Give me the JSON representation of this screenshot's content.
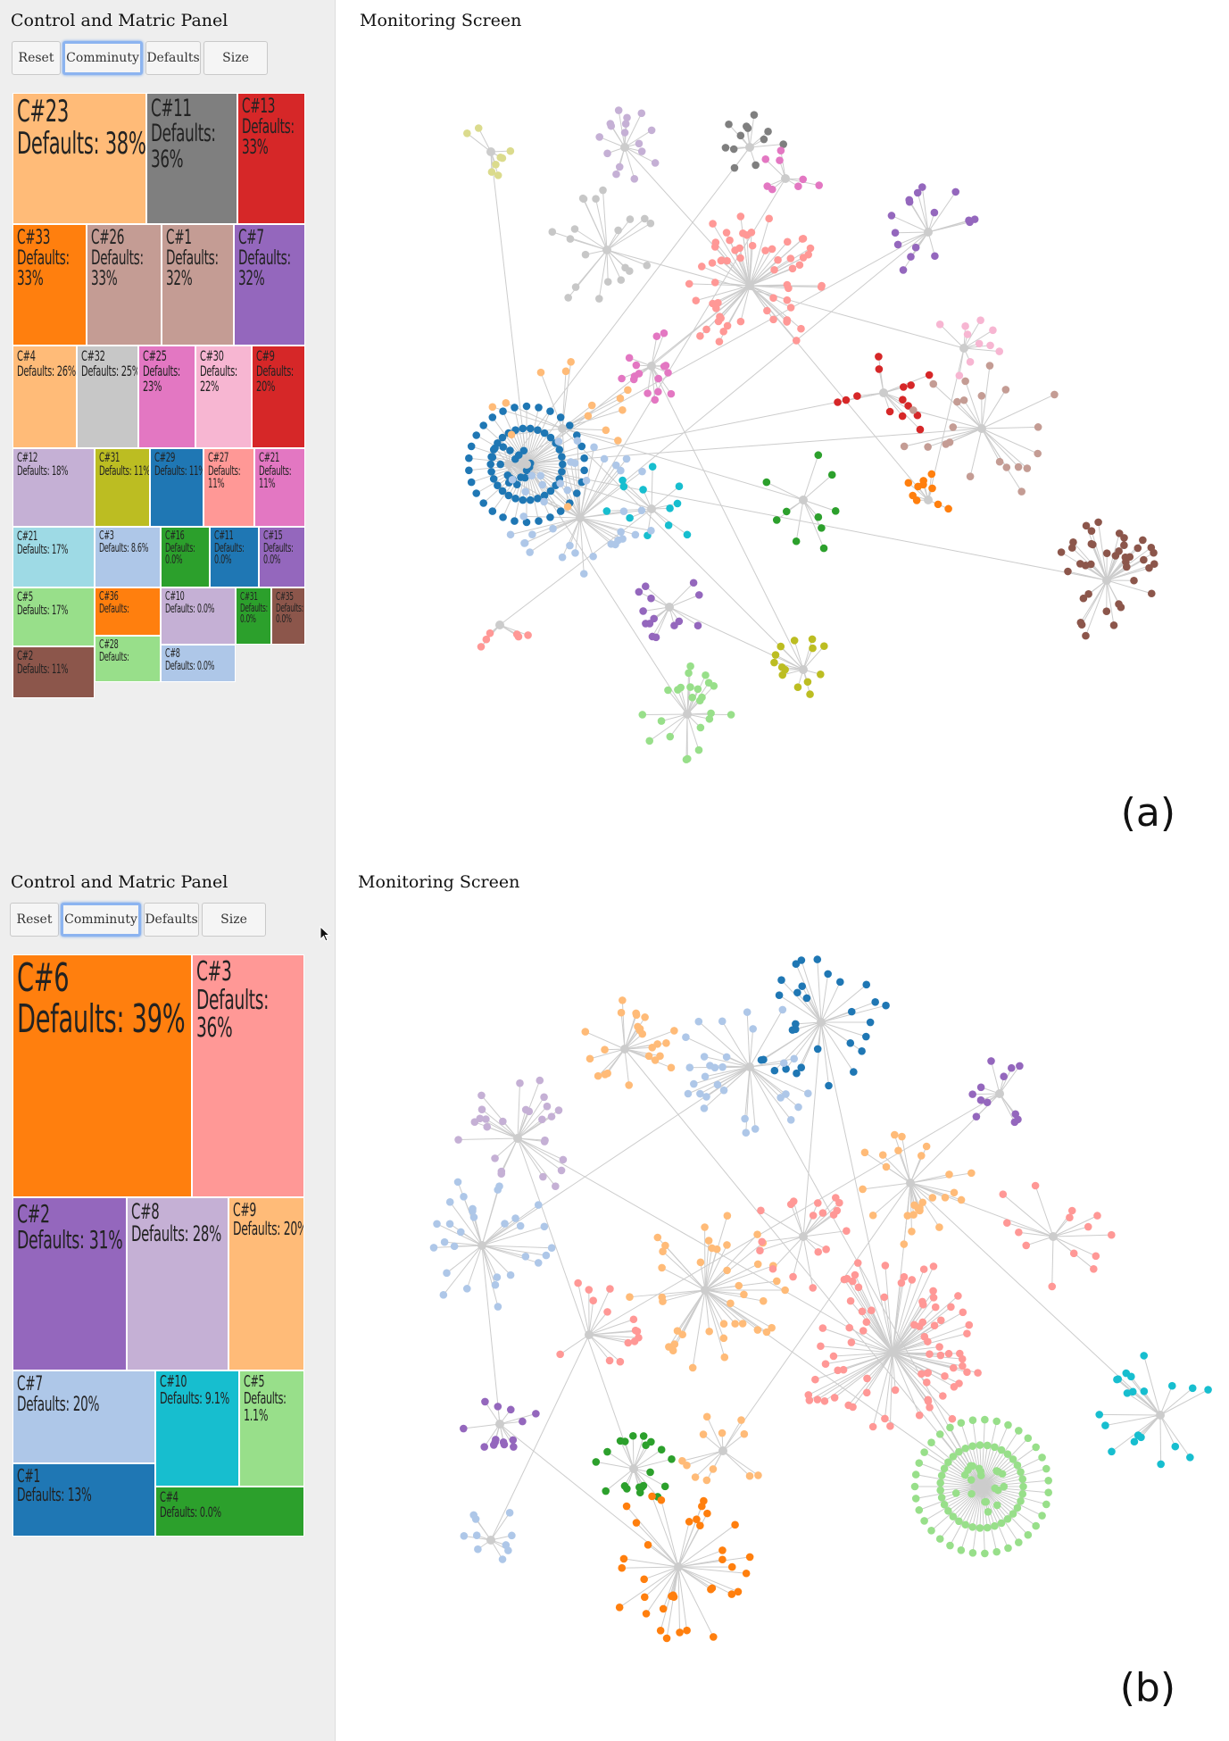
{
  "sections": [
    {
      "id": "a",
      "panel_title": "Control and Matric Panel",
      "buttons": [
        "Reset",
        "Comminuty",
        "Defaults",
        "Size"
      ],
      "active_button": "Comminuty",
      "screen_title": "Monitoring Screen",
      "label": "(a)",
      "treemap": [
        {
          "id": "C#23",
          "defaults": "38%",
          "color": "#ffbb78"
        },
        {
          "id": "C#11",
          "defaults": "36%",
          "color": "#7f7f7f"
        },
        {
          "id": "C#13",
          "defaults": "33%",
          "color": "#d62728"
        },
        {
          "id": "C#33",
          "defaults": "33%",
          "color": "#ff7f0e"
        },
        {
          "id": "C#26",
          "defaults": "33%",
          "color": "#c49c94"
        },
        {
          "id": "C#1",
          "defaults": "32%",
          "color": "#c49c94"
        },
        {
          "id": "C#7",
          "defaults": "32%",
          "color": "#9467bd"
        },
        {
          "id": "C#4",
          "defaults": "26%",
          "color": "#ffbb78"
        },
        {
          "id": "C#32",
          "defaults": "25%",
          "color": "#c7c7c7"
        },
        {
          "id": "C#25",
          "defaults": "23%",
          "color": "#e377c2"
        },
        {
          "id": "C#30",
          "defaults": "22%",
          "color": "#f7b6d2"
        },
        {
          "id": "C#9",
          "defaults": "20%",
          "color": "#d62728"
        },
        {
          "id": "C#12",
          "defaults": "18%",
          "color": "#c5b0d5"
        },
        {
          "id": "C#31",
          "defaults": "11%",
          "color": "#bcbd22"
        },
        {
          "id": "C#29",
          "defaults": "11%",
          "color": "#1f77b4"
        },
        {
          "id": "C#27",
          "defaults": "11%",
          "color": "#ff9896"
        },
        {
          "id": "C#21",
          "defaults": "11%",
          "color": "#e377c2"
        },
        {
          "id": "C#21",
          "defaults": "17%",
          "color": "#9edae5"
        },
        {
          "id": "C#3",
          "defaults": "8.6%",
          "color": "#aec7e8"
        },
        {
          "id": "C#16",
          "defaults": "0.0%",
          "color": "#2ca02c"
        },
        {
          "id": "C#11",
          "defaults": "0.0%",
          "color": "#1f77b4"
        },
        {
          "id": "C#15",
          "defaults": "0.0%",
          "color": "#9467bd"
        },
        {
          "id": "C#5",
          "defaults": "17%",
          "color": "#98df8a"
        },
        {
          "id": "C#36",
          "defaults": "",
          "color": "#ff7f0e"
        },
        {
          "id": "C#10",
          "defaults": "0.0%",
          "color": "#c5b0d5"
        },
        {
          "id": "C#31",
          "defaults": "0.0%",
          "color": "#2ca02c"
        },
        {
          "id": "C#35",
          "defaults": "0.0%",
          "color": "#8c564b"
        },
        {
          "id": "C#2",
          "defaults": "11%",
          "color": "#8c564b"
        },
        {
          "id": "C#28",
          "defaults": "",
          "color": "#98df8a"
        },
        {
          "id": "C#8",
          "defaults": "0.0%",
          "color": "#aec7e8"
        }
      ]
    },
    {
      "id": "b",
      "panel_title": "Control and Matric Panel",
      "buttons": [
        "Reset",
        "Comminuty",
        "Defaults",
        "Size"
      ],
      "active_button": "Comminuty",
      "screen_title": "Monitoring Screen",
      "label": "(b)",
      "treemap": [
        {
          "id": "C#6",
          "defaults": "39%",
          "color": "#ff7f0e"
        },
        {
          "id": "C#3",
          "defaults": "36%",
          "color": "#ff9896"
        },
        {
          "id": "C#2",
          "defaults": "31%",
          "color": "#9467bd"
        },
        {
          "id": "C#8",
          "defaults": "28%",
          "color": "#c5b0d5"
        },
        {
          "id": "C#9",
          "defaults": "20%",
          "color": "#ffbb78"
        },
        {
          "id": "C#7",
          "defaults": "20%",
          "color": "#aec7e8"
        },
        {
          "id": "C#10",
          "defaults": "9.1%",
          "color": "#17becf"
        },
        {
          "id": "C#5",
          "defaults": "1.1%",
          "color": "#98df8a"
        },
        {
          "id": "C#1",
          "defaults": "13%",
          "color": "#1f77b4"
        },
        {
          "id": "C#4",
          "defaults": "0.0%",
          "color": "#2ca02c"
        }
      ]
    }
  ]
}
